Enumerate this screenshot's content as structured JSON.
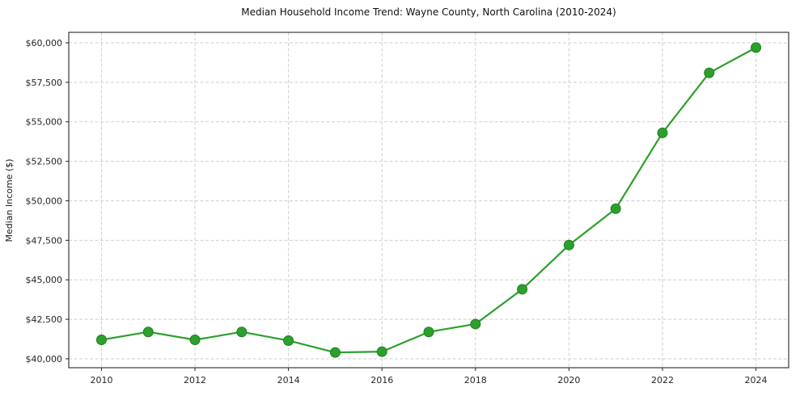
{
  "chart_data": {
    "type": "line",
    "title": "Median Household Income Trend: Wayne County, North Carolina (2010-2024)",
    "xlabel": "",
    "ylabel": "Median Income ($)",
    "x": [
      2010,
      2011,
      2012,
      2013,
      2014,
      2015,
      2016,
      2017,
      2018,
      2019,
      2020,
      2021,
      2022,
      2023,
      2024
    ],
    "values": [
      41200,
      41700,
      41200,
      41700,
      41150,
      40400,
      40450,
      41700,
      42200,
      44400,
      47200,
      49500,
      54300,
      58100,
      59700
    ],
    "series_name": "Median Household Income",
    "line_color": "#2ca02c",
    "marker_edge_color": "#1e7e1e",
    "marker": "circle",
    "grid": true,
    "grid_style": "dashed",
    "legend_position": "none",
    "xticks": [
      2010,
      2012,
      2014,
      2016,
      2018,
      2020,
      2022,
      2024
    ],
    "ytick_values": [
      40000,
      42500,
      45000,
      47500,
      50000,
      52500,
      55000,
      57500,
      60000
    ],
    "ytick_labels": [
      "$40,000",
      "$42,500",
      "$45,000",
      "$47,500",
      "$50,000",
      "$52,500",
      "$55,000",
      "$57,500",
      "$60,000"
    ],
    "ylim": [
      39435,
      60665
    ],
    "xlim": [
      2009.3,
      2024.7
    ],
    "background_color": "#ffffff"
  }
}
